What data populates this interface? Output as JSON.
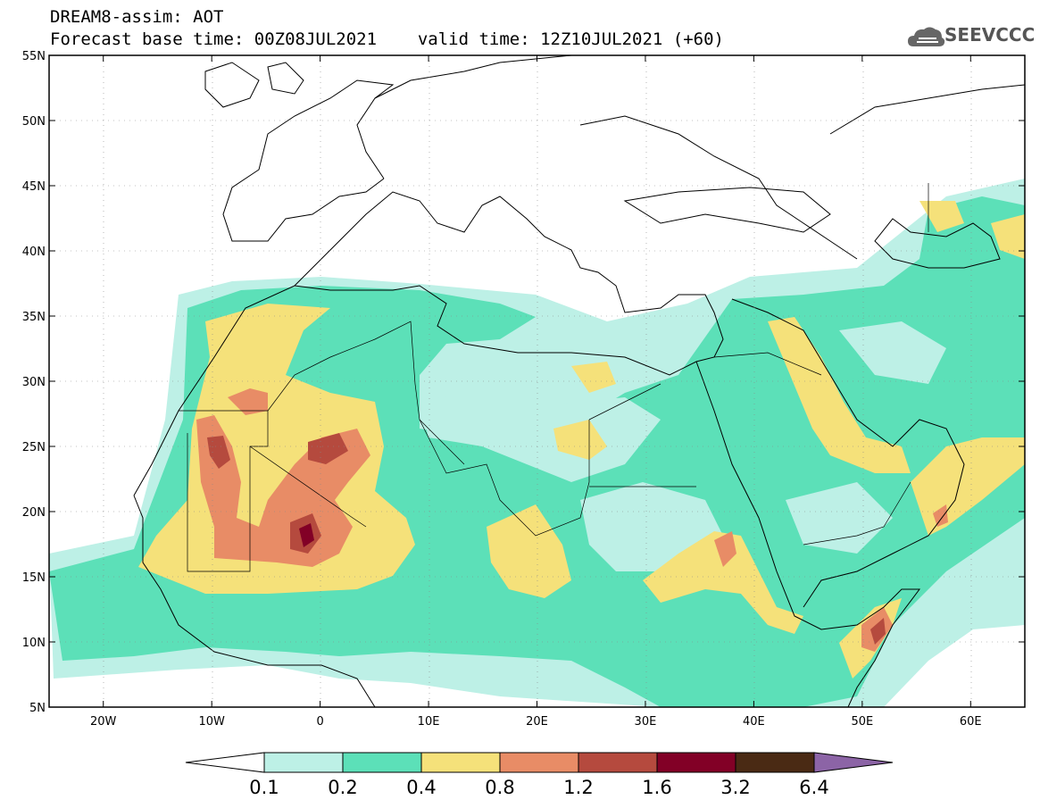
{
  "title": {
    "line1": "DREAM8-assim: AOT",
    "line2_base": "Forecast base time: 00Z08JUL2021",
    "line2_valid": "valid time: 12Z10JUL2021 (+60)"
  },
  "logo": {
    "text": "SEEVCCC",
    "icon": "cloud-logo-icon"
  },
  "map_extent": {
    "lon_min": -25,
    "lon_max": 65,
    "lat_min": 5,
    "lat_max": 55
  },
  "axes": {
    "lat_ticks": [
      {
        "lat": 55,
        "label": "55N"
      },
      {
        "lat": 50,
        "label": "50N"
      },
      {
        "lat": 45,
        "label": "45N"
      },
      {
        "lat": 40,
        "label": "40N"
      },
      {
        "lat": 35,
        "label": "35N"
      },
      {
        "lat": 30,
        "label": "30N"
      },
      {
        "lat": 25,
        "label": "25N"
      },
      {
        "lat": 20,
        "label": "20N"
      },
      {
        "lat": 15,
        "label": "15N"
      },
      {
        "lat": 10,
        "label": "10N"
      },
      {
        "lat": 5,
        "label": "5N"
      }
    ],
    "lon_ticks": [
      {
        "lon": -20,
        "label": "20W"
      },
      {
        "lon": -10,
        "label": "10W"
      },
      {
        "lon": 0,
        "label": "0"
      },
      {
        "lon": 10,
        "label": "10E"
      },
      {
        "lon": 20,
        "label": "20E"
      },
      {
        "lon": 30,
        "label": "30E"
      },
      {
        "lon": 40,
        "label": "40E"
      },
      {
        "lon": 50,
        "label": "50E"
      },
      {
        "lon": 60,
        "label": "60E"
      }
    ]
  },
  "colorbar": {
    "colors": [
      "#ffffff",
      "#bdf0e6",
      "#5ce0b8",
      "#f5e17a",
      "#e88c66",
      "#b54a3e",
      "#820026",
      "#4a2a14",
      "#8c64a6"
    ],
    "labels": [
      "0.1",
      "0.2",
      "0.4",
      "0.8",
      "1.2",
      "1.6",
      "3.2",
      "6.4"
    ]
  }
}
